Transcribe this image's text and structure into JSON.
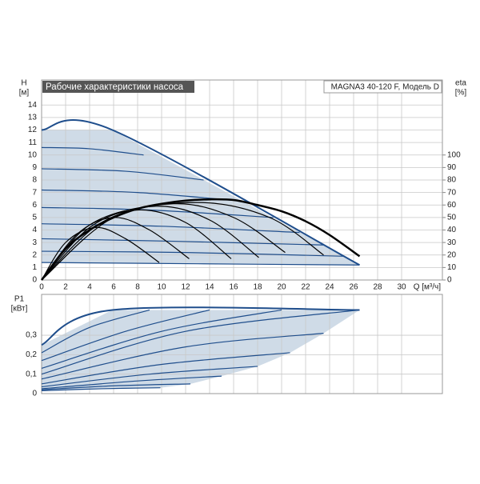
{
  "chart_data": [
    {
      "type": "line",
      "title": "Рабочие характеристики насоса",
      "subtitle": "MAGNA3 40-120 F, Модель D",
      "ylabel": "H",
      "yunit": "[м]",
      "y2label": "eta",
      "y2unit": "[%]",
      "xlabel": "Q [м³/ч]",
      "xlim": [
        0,
        33.4
      ],
      "xticks": [
        0,
        2,
        4,
        6,
        8,
        10,
        12,
        14,
        16,
        18,
        20,
        22,
        24,
        26,
        28,
        30
      ],
      "ylim": [
        0,
        16
      ],
      "yticks": [
        0,
        1,
        2,
        3,
        4,
        5,
        6,
        7,
        8,
        9,
        10,
        11,
        12,
        13,
        14
      ],
      "y2lim": [
        0,
        160
      ],
      "y2ticks": [
        0,
        10,
        20,
        30,
        40,
        50,
        60,
        70,
        80,
        90,
        100
      ],
      "grid": true,
      "shade": {
        "color": "#cfdbe7",
        "x": [
          0,
          5.9,
          26.5,
          13,
          0
        ],
        "values": [
          12,
          12,
          1.2,
          1.3,
          1.4
        ]
      },
      "series": [
        {
          "color": "#1f4e8c",
          "width": 2,
          "x": [
            0,
            5.9,
            26.5
          ],
          "values": [
            12,
            12,
            1.2
          ]
        },
        {
          "color": "#1f4e8c",
          "width": 1.2,
          "x": [
            0,
            4,
            8.5
          ],
          "values": [
            10.6,
            10.5,
            10.0
          ]
        },
        {
          "color": "#1f4e8c",
          "width": 1.2,
          "x": [
            0,
            7,
            13.5
          ],
          "values": [
            8.9,
            8.7,
            8.0
          ]
        },
        {
          "color": "#1f4e8c",
          "width": 1.2,
          "x": [
            0,
            8,
            16.8
          ],
          "values": [
            7.2,
            7.0,
            6.3
          ]
        },
        {
          "color": "#1f4e8c",
          "width": 1.2,
          "x": [
            0,
            9,
            19.3
          ],
          "values": [
            5.8,
            5.6,
            5.0
          ]
        },
        {
          "color": "#1f4e8c",
          "width": 1.2,
          "x": [
            0,
            10,
            21.5
          ],
          "values": [
            4.5,
            4.3,
            3.8
          ]
        },
        {
          "color": "#1f4e8c",
          "width": 1.2,
          "x": [
            0,
            11,
            23.5
          ],
          "values": [
            3.3,
            3.1,
            2.8
          ]
        },
        {
          "color": "#1f4e8c",
          "width": 1.2,
          "x": [
            0,
            12,
            25.2
          ],
          "values": [
            2.3,
            2.2,
            1.9
          ]
        },
        {
          "color": "#1f4e8c",
          "width": 1.2,
          "x": [
            0,
            13,
            26.5
          ],
          "values": [
            1.4,
            1.3,
            1.2
          ]
        },
        {
          "color": "#000000",
          "width": 1.2,
          "axis": "y2",
          "x": [
            0,
            2,
            4.5,
            7,
            9.8
          ],
          "values": [
            0,
            30,
            42,
            33,
            14
          ]
        },
        {
          "color": "#000000",
          "width": 1.2,
          "axis": "y2",
          "x": [
            0,
            3,
            6,
            9,
            12.3
          ],
          "values": [
            0,
            37,
            50,
            40,
            17
          ]
        },
        {
          "color": "#000000",
          "width": 1.2,
          "axis": "y2",
          "x": [
            0,
            4,
            8,
            12,
            15.8
          ],
          "values": [
            0,
            42,
            56,
            46,
            17
          ]
        },
        {
          "color": "#000000",
          "width": 1.2,
          "axis": "y2",
          "x": [
            0,
            4,
            9.5,
            14,
            18.1
          ],
          "values": [
            0,
            44,
            59,
            48,
            18
          ]
        },
        {
          "color": "#000000",
          "width": 1.2,
          "axis": "y2",
          "x": [
            0,
            5,
            11,
            16,
            20.3
          ],
          "values": [
            0,
            46,
            61,
            50,
            22
          ]
        },
        {
          "color": "#000000",
          "width": 1.2,
          "axis": "y2",
          "x": [
            0,
            6,
            13,
            19,
            23.5
          ],
          "values": [
            0,
            50,
            62,
            50,
            20
          ]
        },
        {
          "color": "#000000",
          "width": 2.5,
          "axis": "y2",
          "x": [
            0,
            2,
            4,
            6,
            8,
            10,
            12,
            14,
            16,
            18,
            20,
            22,
            24,
            26.5
          ],
          "values": [
            0,
            25,
            40,
            50,
            57,
            61,
            63.5,
            64.5,
            64,
            60,
            55,
            47,
            36,
            19
          ]
        }
      ]
    },
    {
      "type": "line",
      "ylabel": "P1",
      "yunit": "[кВт]",
      "xlim": [
        0,
        33.4
      ],
      "xticks": [
        0,
        2,
        4,
        6,
        8,
        10,
        12,
        14,
        16,
        18,
        20,
        22,
        24,
        26,
        28,
        30
      ],
      "xtick_labels": false,
      "ylim": [
        0,
        0.51
      ],
      "yticks": [
        0,
        {
          "value": 0.1,
          "label": "0,1"
        },
        {
          "value": 0.2,
          "label": "0,2"
        },
        {
          "value": 0.3,
          "label": "0,3"
        }
      ],
      "grid": true,
      "shade": {
        "color": "#cfdbe7",
        "x": [
          0,
          5.9,
          26.5,
          23.5,
          20.7,
          18,
          15,
          12.4,
          9.9,
          0
        ],
        "values": [
          0.25,
          0.43,
          0.43,
          0.31,
          0.21,
          0.14,
          0.09,
          0.05,
          0.03,
          0.015
        ]
      },
      "series": [
        {
          "color": "#1f4e8c",
          "width": 2,
          "x": [
            0,
            5.9,
            26.5
          ],
          "values": [
            0.25,
            0.43,
            0.43
          ]
        },
        {
          "color": "#1f4e8c",
          "width": 1.2,
          "x": [
            0,
            4,
            9
          ],
          "values": [
            0.21,
            0.34,
            0.43
          ]
        },
        {
          "color": "#1f4e8c",
          "width": 1.2,
          "x": [
            0,
            7,
            14
          ],
          "values": [
            0.17,
            0.32,
            0.43
          ]
        },
        {
          "color": "#1f4e8c",
          "width": 1.2,
          "x": [
            0,
            10,
            20
          ],
          "values": [
            0.13,
            0.32,
            0.43
          ]
        },
        {
          "color": "#1f4e8c",
          "width": 1.2,
          "x": [
            0,
            12,
            26.5
          ],
          "values": [
            0.1,
            0.32,
            0.43
          ]
        },
        {
          "color": "#1f4e8c",
          "width": 1.2,
          "x": [
            0,
            12,
            23.5
          ],
          "values": [
            0.075,
            0.24,
            0.31
          ]
        },
        {
          "color": "#1f4e8c",
          "width": 1.2,
          "x": [
            0,
            10,
            20.7
          ],
          "values": [
            0.05,
            0.15,
            0.21
          ]
        },
        {
          "color": "#1f4e8c",
          "width": 1.2,
          "x": [
            0,
            9,
            18
          ],
          "values": [
            0.035,
            0.1,
            0.14
          ]
        },
        {
          "color": "#1f4e8c",
          "width": 1.2,
          "x": [
            0,
            8,
            15
          ],
          "values": [
            0.025,
            0.065,
            0.09
          ]
        },
        {
          "color": "#1f4e8c",
          "width": 1.2,
          "x": [
            0,
            6,
            12.4
          ],
          "values": [
            0.02,
            0.04,
            0.05
          ]
        },
        {
          "color": "#1f4e8c",
          "width": 1.2,
          "x": [
            0,
            5,
            9.9
          ],
          "values": [
            0.015,
            0.025,
            0.03
          ]
        }
      ]
    }
  ]
}
